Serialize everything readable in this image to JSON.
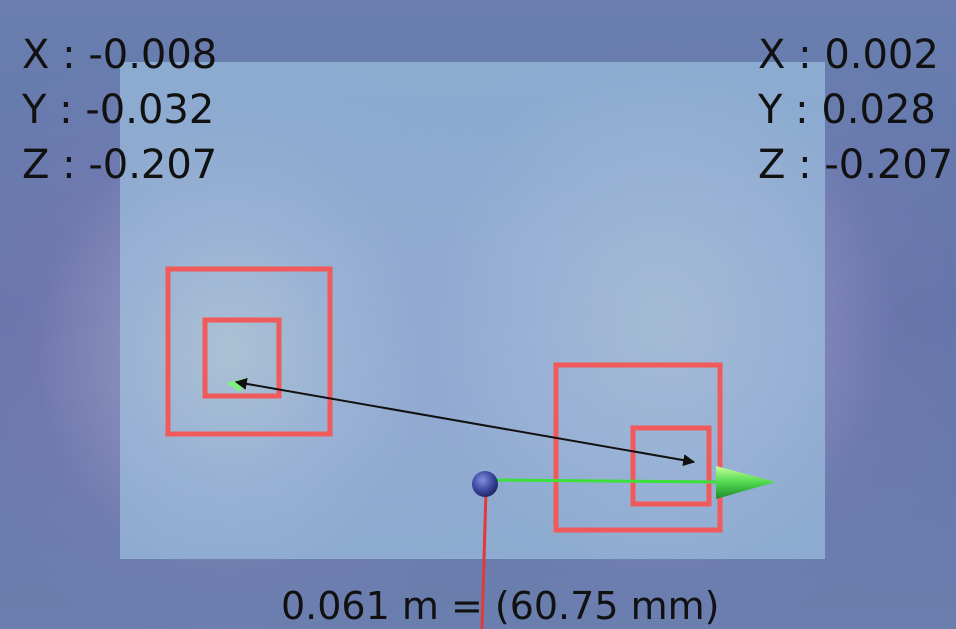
{
  "viewport": {
    "left_readout": {
      "x_label": "X",
      "x_value": "-0.008",
      "y_label": "Y",
      "y_value": "-0.032",
      "z_label": "Z",
      "z_value": "-0.207"
    },
    "right_readout": {
      "x_label": "X",
      "x_value": "0.002",
      "y_label": "Y",
      "y_value": "0.028",
      "z_label": "Z",
      "z_value": "-0.207"
    },
    "distance_label": "0.061 m = (60.75 mm)"
  },
  "colors": {
    "marker": "#f05a5a",
    "arrow": "#111111",
    "axis_x": "#3be03b",
    "axis_y": "#e03a3a",
    "origin": "#3d4aa0"
  },
  "icons": {
    "origin": "sphere-marker-icon",
    "x_axis_head": "cone-arrow-icon"
  }
}
